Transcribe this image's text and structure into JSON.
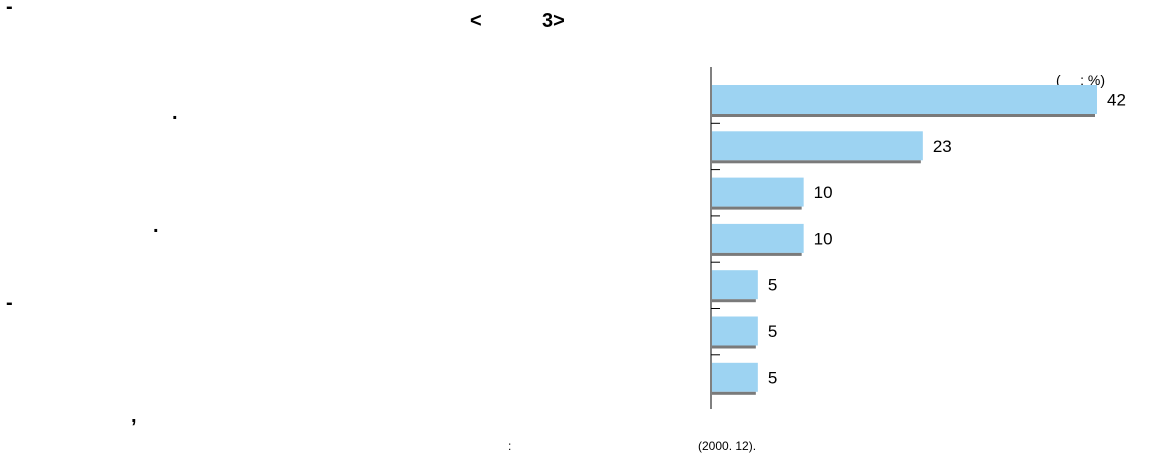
{
  "text": {
    "dash_top": "-",
    "title_open": "<",
    "title_num": "3>",
    "period_1": ".",
    "period_2": ".",
    "dash_mid": "-",
    "comma": ",",
    "unit": "(     : %)",
    "source_colon": ":",
    "source_date": "(2000. 12)."
  },
  "colors": {
    "bar_fill": "#9dd3f2",
    "bar_shadow": "#7a7a7a",
    "axis": "#000000"
  },
  "chart_data": {
    "type": "bar",
    "orientation": "horizontal",
    "categories": [
      "",
      "",
      "",
      "",
      "",
      "",
      ""
    ],
    "values": [
      42,
      23,
      10,
      10,
      5,
      5,
      5
    ],
    "unit": "%",
    "xlim": [
      0,
      42
    ],
    "grid": false,
    "legend": "none"
  }
}
